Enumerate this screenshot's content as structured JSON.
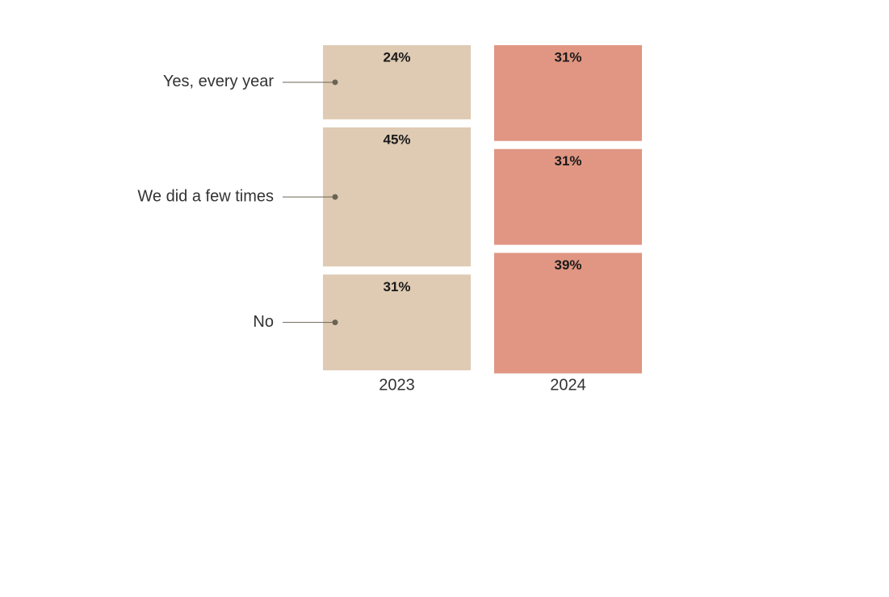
{
  "chart_data": {
    "type": "bar",
    "stacked": true,
    "categories": [
      "2023",
      "2024"
    ],
    "colors": [
      "#dfcbb3",
      "#e09682"
    ],
    "series": [
      {
        "name": "Yes, every year",
        "values": [
          24,
          31
        ],
        "value_labels": [
          "24%",
          "31%"
        ]
      },
      {
        "name": "We did a few times",
        "values": [
          45,
          31
        ],
        "value_labels": [
          "45%",
          "31%"
        ]
      },
      {
        "name": "No",
        "values": [
          31,
          39
        ],
        "value_labels": [
          "31%",
          "39%"
        ]
      }
    ]
  }
}
